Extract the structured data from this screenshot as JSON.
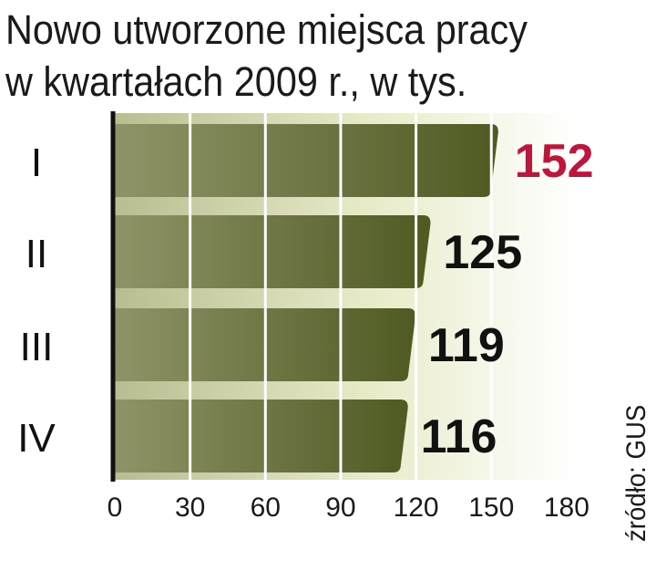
{
  "chart_data": {
    "type": "bar",
    "orientation": "horizontal",
    "title": [
      "Nowo utworzone miejsca pracy",
      "w kwartałach 2009 r., w tys."
    ],
    "categories": [
      "I",
      "II",
      "III",
      "IV"
    ],
    "values": [
      152,
      125,
      119,
      116
    ],
    "value_labels": [
      "152",
      "125",
      "119",
      "116"
    ],
    "xlim": [
      0,
      180
    ],
    "xticks": [
      0,
      30,
      60,
      90,
      120,
      150,
      180
    ],
    "xtick_labels": [
      "0",
      "30",
      "60",
      "90",
      "120",
      "150",
      "180"
    ],
    "grid": true,
    "source": "źródło: GUS",
    "colors": {
      "bar_dark": "#4f5a22",
      "bar_light": "#8f9468",
      "background_band": "#e8ebc8",
      "highlight_label": "#c0143c",
      "label": "#111111",
      "gridline": "#ffffff"
    }
  }
}
